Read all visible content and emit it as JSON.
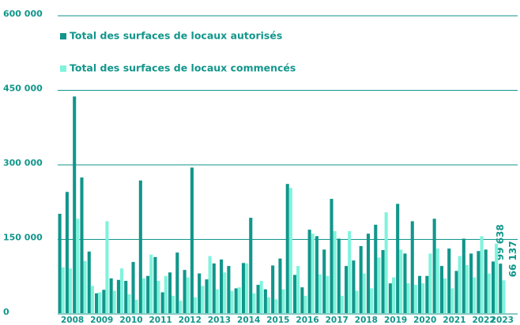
{
  "chart_data": {
    "type": "bar",
    "categories": [
      "2008",
      null,
      null,
      null,
      "2009",
      null,
      null,
      null,
      "2010",
      null,
      null,
      null,
      "2011",
      null,
      null,
      null,
      "2012",
      null,
      null,
      null,
      "2013",
      null,
      null,
      null,
      "2014",
      null,
      null,
      null,
      "2015",
      null,
      null,
      null,
      "2016",
      null,
      null,
      null,
      "2017",
      null,
      null,
      null,
      "2018",
      null,
      null,
      null,
      "2019",
      null,
      null,
      null,
      "2020",
      null,
      null,
      null,
      "2021",
      null,
      null,
      null,
      "2022",
      null,
      null,
      null,
      "2023"
    ],
    "series": [
      {
        "name": "Total des surfaces de locaux autorisés",
        "color": "#11968b",
        "values": [
          200000,
          244000,
          436000,
          273000,
          124000,
          40000,
          47000,
          70000,
          67000,
          65000,
          103000,
          267000,
          75000,
          113000,
          42000,
          82000,
          122000,
          87000,
          293000,
          80000,
          68000,
          100000,
          108000,
          95000,
          50000,
          101000,
          192000,
          57000,
          48000,
          96000,
          110000,
          260000,
          77000,
          52000,
          168000,
          155000,
          128000,
          230000,
          150000,
          95000,
          106000,
          135000,
          160000,
          178000,
          127000,
          60000,
          220000,
          120000,
          185000,
          75000,
          75000,
          190000,
          95000,
          130000,
          85000,
          150000,
          120000,
          125000,
          128000,
          104000,
          99638
        ],
        "value_labels": [
          null,
          null,
          null,
          null,
          null,
          null,
          null,
          null,
          null,
          null,
          null,
          null,
          null,
          null,
          null,
          null,
          null,
          null,
          null,
          null,
          null,
          null,
          null,
          null,
          null,
          null,
          null,
          null,
          null,
          null,
          null,
          null,
          null,
          null,
          null,
          null,
          null,
          null,
          null,
          null,
          null,
          null,
          null,
          null,
          null,
          null,
          null,
          null,
          null,
          null,
          null,
          null,
          null,
          null,
          null,
          null,
          null,
          null,
          null,
          null,
          "99 638"
        ]
      },
      {
        "name": "Total des surfaces de locaux commencés",
        "color": "#80f3dc",
        "values": [
          92000,
          90000,
          190000,
          105000,
          55000,
          42000,
          185000,
          45000,
          90000,
          38000,
          27000,
          70000,
          118000,
          65000,
          75000,
          35000,
          25000,
          72000,
          32000,
          55000,
          115000,
          48000,
          82000,
          45000,
          52000,
          100000,
          40000,
          65000,
          32000,
          28000,
          48000,
          252000,
          95000,
          35000,
          160000,
          78000,
          75000,
          165000,
          35000,
          165000,
          45000,
          80000,
          50000,
          112000,
          203000,
          72000,
          128000,
          60000,
          57000,
          60000,
          120000,
          130000,
          70000,
          50000,
          115000,
          97000,
          72000,
          155000,
          80000,
          140000,
          66137
        ],
        "value_labels": [
          null,
          null,
          null,
          null,
          null,
          null,
          null,
          null,
          null,
          null,
          null,
          null,
          null,
          null,
          null,
          null,
          null,
          null,
          null,
          null,
          null,
          null,
          null,
          null,
          null,
          null,
          null,
          null,
          null,
          null,
          null,
          null,
          null,
          null,
          null,
          null,
          null,
          null,
          null,
          null,
          null,
          null,
          null,
          null,
          null,
          null,
          null,
          null,
          null,
          null,
          null,
          null,
          null,
          null,
          null,
          null,
          null,
          null,
          null,
          null,
          "66 137"
        ]
      }
    ],
    "ylim": [
      0,
      600000
    ],
    "yticks": [
      0,
      {
        "value": 150000,
        "label": "150 000"
      },
      {
        "value": 300000,
        "label": "300 000"
      },
      {
        "value": 450000,
        "label": "450 000"
      },
      {
        "value": 600000,
        "label": "600 000"
      }
    ],
    "grid": true
  }
}
